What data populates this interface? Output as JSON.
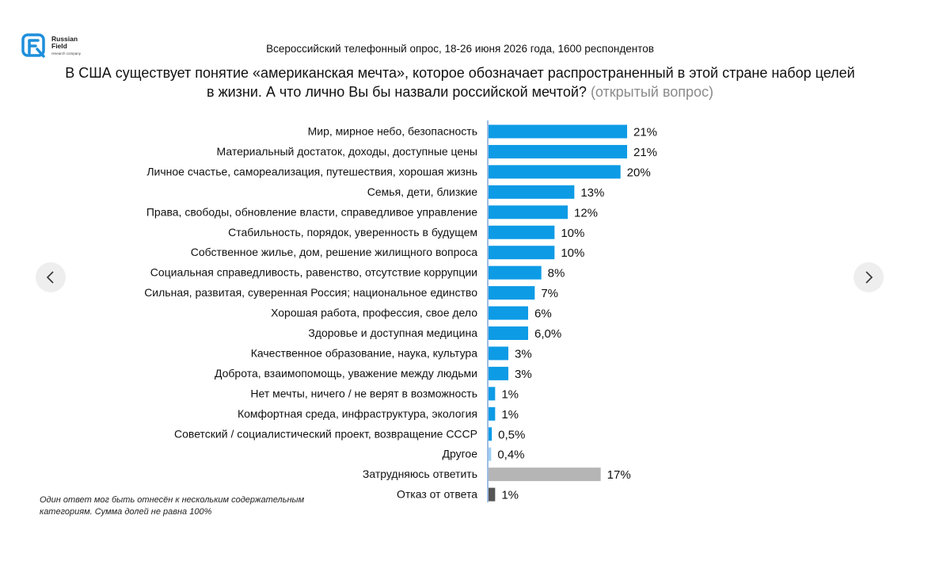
{
  "brand": {
    "name_line1": "Russian",
    "name_line2": "Field",
    "tagline": "research company"
  },
  "colors": {
    "accent": "#0d9be6",
    "neutral": "#b5b5b5",
    "refusal": "#555555",
    "light": "#9fd0f3",
    "axis": "#3b78c4"
  },
  "icons": {
    "prev": "chevron-left-icon",
    "next": "chevron-right-icon"
  },
  "chart_data": {
    "type": "bar",
    "orientation": "horizontal",
    "subtitle": "Всероссийский телефонный опрос, 18-26 июня 2026 года, 1600 респондентов",
    "title": "В США существует понятие «американская мечта», которое обозначает распространенный в этой стране набор целей в жизни. А что лично Вы бы назвали российской мечтой?",
    "title_note": "(открытый вопрос)",
    "xlim": [
      0,
      21
    ],
    "categories": [
      "Мир, мирное небо, безопасность",
      "Материальный достаток, доходы, доступные цены",
      "Личное счастье, самореализация, путешествия, хорошая жизнь",
      "Семья, дети, близкие",
      "Права, свободы, обновление власти, справедливое управление",
      "Стабильность, порядок, уверенность в будущем",
      "Собственное жилье, дом, решение жилищного вопроса",
      "Социальная справедливость, равенство, отсутствие коррупции",
      "Сильная, развитая, суверенная Россия; национальное единство",
      "Хорошая работа, профессия, свое дело",
      "Здоровье и доступная медицина",
      "Качественное образование, наука, культура",
      "Доброта, взаимопомощь, уважение между людьми",
      "Нет мечты, ничего / не верят в возможность",
      "Комфортная среда, инфраструктура, экология",
      "Советский / социалистический проект, возвращение СССР",
      "Другое",
      "Затрудняюсь ответить",
      "Отказ от ответа"
    ],
    "values": [
      21,
      21,
      20,
      13,
      12,
      10,
      10,
      8,
      7,
      6,
      6.0,
      3,
      3,
      1,
      1,
      0.5,
      0.4,
      17,
      1
    ],
    "value_labels": [
      "21%",
      "21%",
      "20%",
      "13%",
      "12%",
      "10%",
      "10%",
      "8%",
      "7%",
      "6%",
      "6,0%",
      "3%",
      "3%",
      "1%",
      "1%",
      "0,5%",
      "0,4%",
      "17%",
      "1%"
    ],
    "bar_colors": [
      "#0d9be6",
      "#0d9be6",
      "#0d9be6",
      "#0d9be6",
      "#0d9be6",
      "#0d9be6",
      "#0d9be6",
      "#0d9be6",
      "#0d9be6",
      "#0d9be6",
      "#0d9be6",
      "#0d9be6",
      "#0d9be6",
      "#0d9be6",
      "#0d9be6",
      "#0d9be6",
      "#9fd0f3",
      "#b5b5b5",
      "#555555"
    ],
    "grid": false,
    "legend": "none"
  },
  "footnote": "Один ответ мог быть отнесён к нескольким содержательным категориям. Сумма долей не равна 100%"
}
